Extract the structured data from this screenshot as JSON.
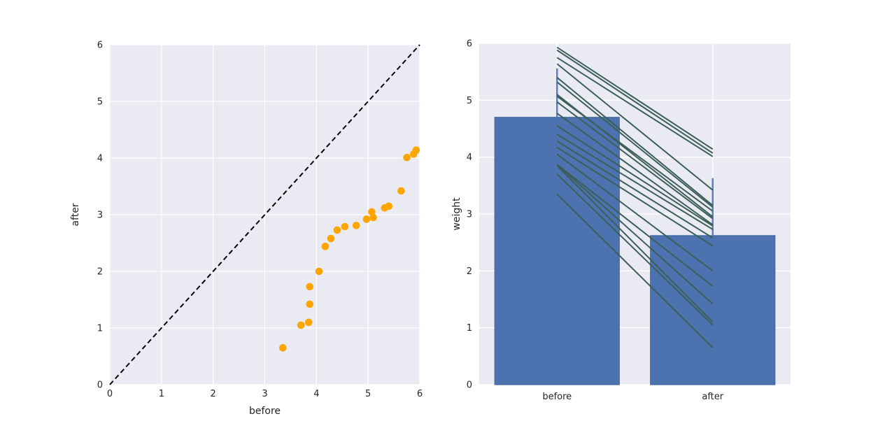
{
  "figure": {
    "background": "#ffffff",
    "axes_background": "#eaeaf2",
    "grid_color": "#ffffff",
    "text_color": "#262626"
  },
  "chart_data": [
    {
      "type": "scatter",
      "title": "",
      "xlabel": "before",
      "ylabel": "after",
      "xlim": [
        0,
        6
      ],
      "ylim": [
        0,
        6
      ],
      "xticks": [
        0,
        1,
        2,
        3,
        4,
        5,
        6
      ],
      "yticks": [
        0,
        1,
        2,
        3,
        4,
        5,
        6
      ],
      "grid": true,
      "marker_color": "#ffa500",
      "identity_line": {
        "from": [
          0,
          0
        ],
        "to": [
          6,
          6
        ],
        "color": "#000000",
        "style": "dashed"
      },
      "points": [
        [
          3.35,
          0.65
        ],
        [
          3.7,
          1.05
        ],
        [
          3.85,
          1.1
        ],
        [
          3.87,
          1.42
        ],
        [
          3.87,
          1.73
        ],
        [
          4.05,
          2.0
        ],
        [
          4.17,
          2.44
        ],
        [
          4.28,
          2.58
        ],
        [
          4.4,
          2.73
        ],
        [
          4.55,
          2.79
        ],
        [
          4.77,
          2.81
        ],
        [
          4.97,
          2.92
        ],
        [
          5.07,
          3.05
        ],
        [
          5.1,
          2.95
        ],
        [
          5.32,
          3.12
        ],
        [
          5.4,
          3.15
        ],
        [
          5.64,
          3.42
        ],
        [
          5.75,
          4.01
        ],
        [
          5.88,
          4.07
        ],
        [
          5.93,
          4.14
        ]
      ]
    },
    {
      "type": "bar",
      "title": "",
      "xlabel": "",
      "ylabel": "weight",
      "categories": [
        "before",
        "after"
      ],
      "values": [
        4.7,
        2.62
      ],
      "ci_top": [
        5.56,
        3.63
      ],
      "ylim": [
        0,
        6
      ],
      "yticks": [
        0,
        1,
        2,
        3,
        4,
        5,
        6
      ],
      "grid": true,
      "bar_color": "#4c72b0",
      "bar_edge_color": "#3f66a0",
      "errorbar_color": "#567bc8",
      "paired_line_color": "#3c5f58",
      "paired_lines": [
        [
          3.35,
          0.65
        ],
        [
          3.7,
          1.05
        ],
        [
          3.85,
          1.1
        ],
        [
          3.87,
          1.42
        ],
        [
          3.87,
          1.73
        ],
        [
          4.05,
          2.0
        ],
        [
          4.17,
          2.44
        ],
        [
          4.28,
          2.58
        ],
        [
          4.4,
          2.73
        ],
        [
          4.55,
          2.79
        ],
        [
          4.77,
          2.81
        ],
        [
          4.97,
          2.92
        ],
        [
          5.07,
          3.05
        ],
        [
          5.1,
          2.95
        ],
        [
          5.32,
          3.12
        ],
        [
          5.4,
          3.15
        ],
        [
          5.64,
          3.42
        ],
        [
          5.75,
          4.01
        ],
        [
          5.88,
          4.07
        ],
        [
          5.93,
          4.14
        ]
      ]
    }
  ]
}
